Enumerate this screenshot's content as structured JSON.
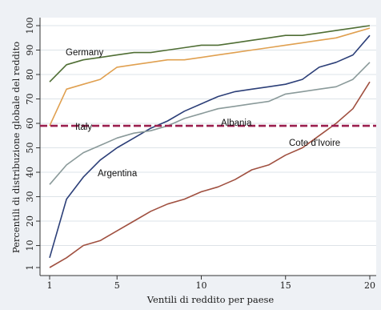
{
  "chart_data": {
    "type": "line",
    "title": "",
    "xlabel": "Ventili di reddito per paese",
    "ylabel": "Percentili di distribuzione globale del reddito",
    "xlim": [
      1,
      20
    ],
    "ylim": [
      1,
      100
    ],
    "x_ticks": [
      1,
      5,
      10,
      15,
      20
    ],
    "y_ticks": [
      1,
      10,
      20,
      30,
      40,
      50,
      60,
      70,
      80,
      90,
      100
    ],
    "grid": "horizontal",
    "legend": "none",
    "x": [
      1,
      2,
      3,
      4,
      5,
      6,
      7,
      8,
      9,
      10,
      11,
      12,
      13,
      14,
      15,
      16,
      17,
      18,
      19,
      20
    ],
    "reference_line": {
      "y": 59,
      "style": "dashed",
      "color": "#9b1f4e"
    },
    "series": [
      {
        "name": "Germany",
        "color": "#4f6e34",
        "values": [
          77,
          84,
          86,
          87,
          88,
          89,
          89,
          90,
          91,
          92,
          92,
          93,
          94,
          95,
          96,
          96,
          97,
          98,
          99,
          100
        ]
      },
      {
        "name": "Italy",
        "color": "#e0a050",
        "values": [
          59,
          74,
          76,
          78,
          83,
          84,
          85,
          86,
          86,
          87,
          88,
          89,
          90,
          91,
          92,
          93,
          94,
          95,
          97,
          99
        ]
      },
      {
        "name": "Argentina",
        "color": "#2c3f78",
        "values": [
          5,
          29,
          38,
          45,
          50,
          54,
          58,
          61,
          65,
          68,
          71,
          73,
          74,
          75,
          76,
          78,
          83,
          85,
          88,
          96
        ]
      },
      {
        "name": "Albania",
        "color": "#8a9a9a",
        "values": [
          35,
          43,
          48,
          51,
          54,
          56,
          57,
          59,
          62,
          64,
          66,
          67,
          68,
          69,
          72,
          73,
          74,
          75,
          78,
          85
        ]
      },
      {
        "name": "Cote d'Ivoire",
        "color": "#a05040",
        "values": [
          1,
          5,
          10,
          12,
          16,
          20,
          24,
          27,
          29,
          32,
          34,
          37,
          41,
          43,
          47,
          50,
          55,
          60,
          66,
          77
        ]
      }
    ]
  }
}
